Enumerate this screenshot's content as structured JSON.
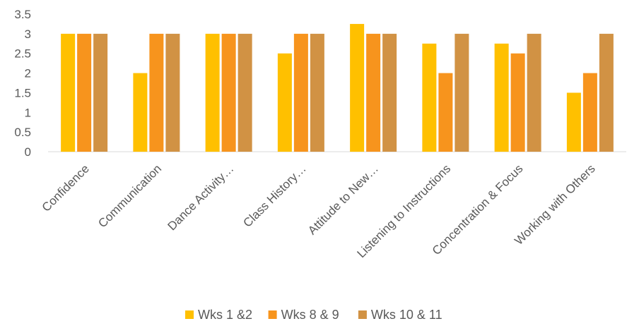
{
  "chart_data": {
    "type": "bar",
    "title": "",
    "xlabel": "",
    "ylabel": "",
    "ylim": [
      0,
      3.5
    ],
    "yticks": [
      0,
      0.5,
      1,
      1.5,
      2,
      2.5,
      3,
      3.5
    ],
    "ytick_labels": [
      "0",
      "0.5",
      "1",
      "1.5",
      "2",
      "2.5",
      "3",
      "3.5"
    ],
    "grid": false,
    "legend_position": "bottom",
    "categories": [
      "Confidence",
      "Communication",
      "Dance Activity…",
      "Class History…",
      "Attitude to New…",
      "Listening to Instructions",
      "Concentration & Focus",
      "Working with Others"
    ],
    "series": [
      {
        "name": "Wks 1 &2",
        "color": "#FFC000",
        "values": [
          3,
          2,
          3,
          2.5,
          3.25,
          2.75,
          2.75,
          1.5
        ]
      },
      {
        "name": "Wks 8 & 9",
        "color": "#F7941D",
        "values": [
          3,
          3,
          3,
          3,
          3,
          2,
          2.5,
          2
        ]
      },
      {
        "name": "Wks 10 & 11",
        "color": "#D19244",
        "values": [
          3,
          3,
          3,
          3,
          3,
          3,
          3,
          3
        ]
      }
    ]
  }
}
